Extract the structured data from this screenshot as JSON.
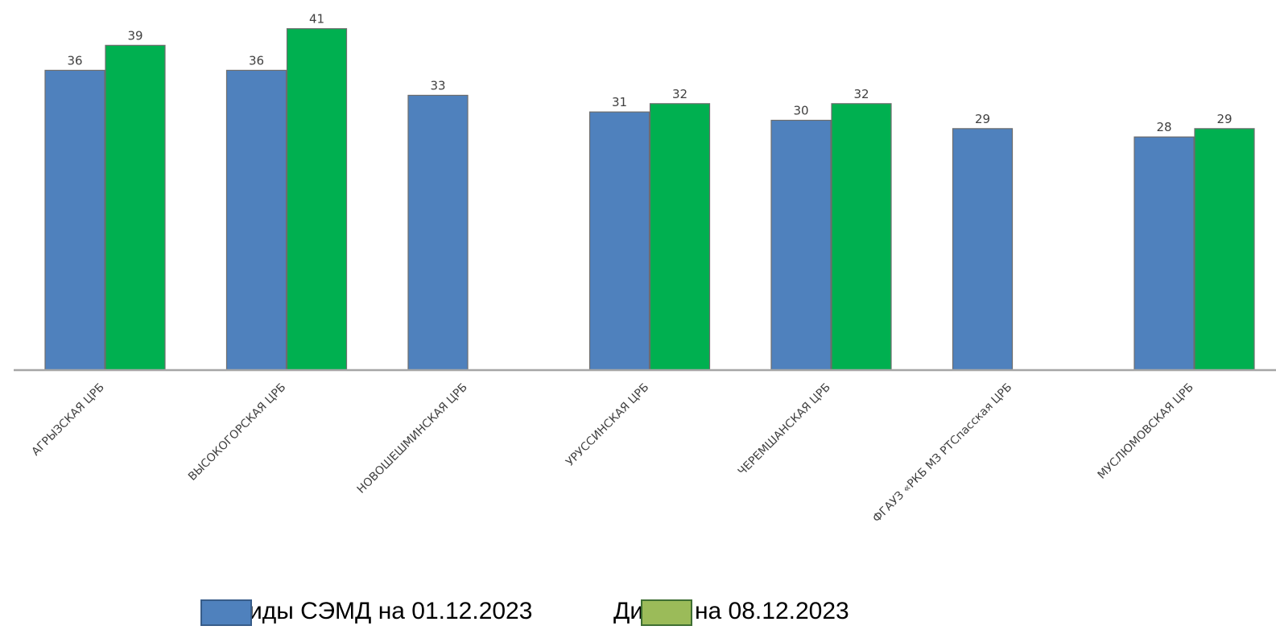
{
  "chart_data": {
    "type": "bar",
    "categories": [
      "АГРЫЗСКАЯ ЦРБ",
      "ВЫСОКОГОРСКАЯ ЦРБ",
      "НОВОШЕШМИНСКАЯ ЦРБ",
      "УРУССИНСКАЯ ЦРБ",
      "ЧЕРЕМШАНСКАЯ ЦРБ",
      "ФГАУЗ «РКБ МЗ РТСпасская ЦРБ",
      "МУСЛЮМОВСКАЯ ЦРБ"
    ],
    "series": [
      {
        "name": "иды СЭМД на 01.12.2023",
        "values": [
          36,
          36,
          33,
          31,
          30,
          29,
          28
        ],
        "color": "#4f81bd"
      },
      {
        "name": "Ди ика на 08.12.2023",
        "values": [
          39,
          41,
          null,
          32,
          32,
          null,
          29
        ],
        "color": "#00b050"
      }
    ],
    "legend_colors": [
      "#4f81bd",
      "#9bbb59"
    ],
    "ylim": [
      0,
      41
    ],
    "grid": false,
    "legend_position": "bottom",
    "data_labels": true
  }
}
